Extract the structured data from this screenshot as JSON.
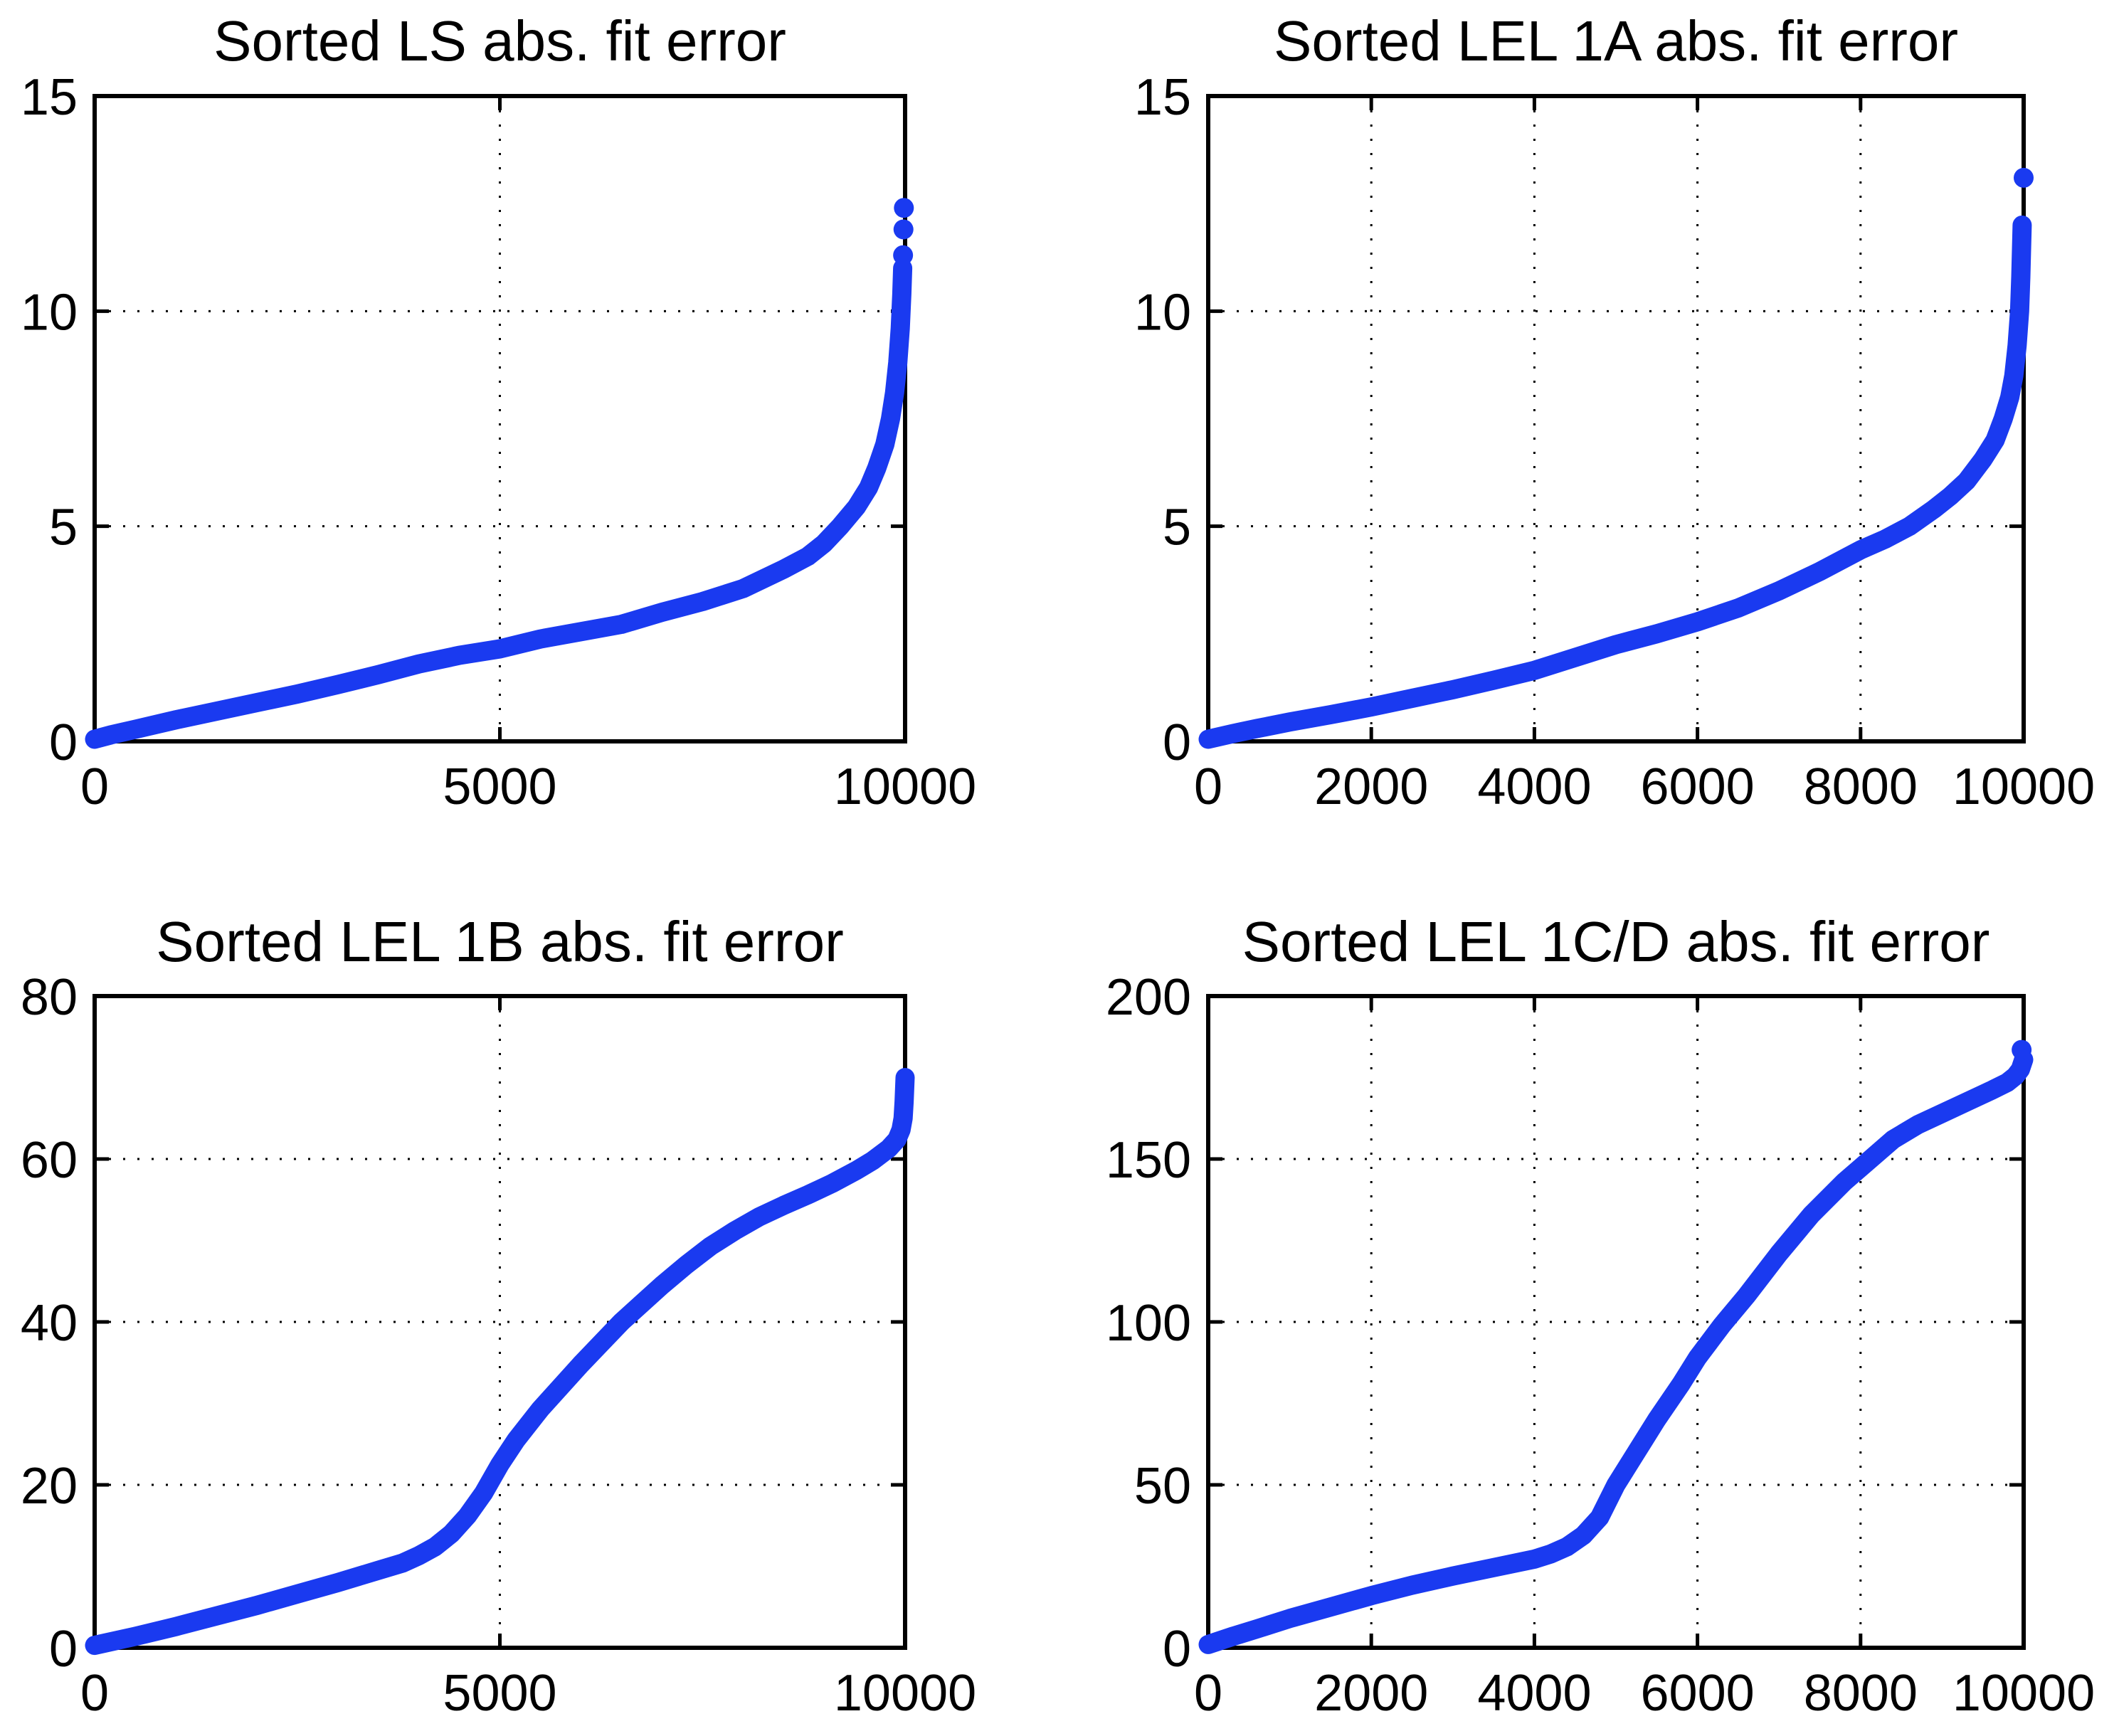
{
  "figure": {
    "background": "#ffffff",
    "axis_color": "#000000",
    "grid_color": "#000000",
    "marker_color": "#1a3af0"
  },
  "chart_data": [
    {
      "type": "scatter",
      "title": "Sorted LS abs. fit error",
      "xlabel": "",
      "ylabel": "",
      "xlim": [
        0,
        10000
      ],
      "ylim": [
        0,
        15
      ],
      "xticks": [
        0,
        5000,
        10000
      ],
      "yticks": [
        0,
        5,
        10,
        15
      ],
      "grid": true,
      "legend": "none",
      "marker_color": "#1a3af0",
      "points": [
        [
          0,
          0.05
        ],
        [
          200,
          0.15
        ],
        [
          500,
          0.28
        ],
        [
          1000,
          0.5
        ],
        [
          1500,
          0.7
        ],
        [
          2000,
          0.9
        ],
        [
          2500,
          1.1
        ],
        [
          3000,
          1.32
        ],
        [
          3500,
          1.55
        ],
        [
          4000,
          1.8
        ],
        [
          4500,
          2.0
        ],
        [
          5000,
          2.15
        ],
        [
          5500,
          2.38
        ],
        [
          6000,
          2.55
        ],
        [
          6500,
          2.72
        ],
        [
          7000,
          3.0
        ],
        [
          7500,
          3.25
        ],
        [
          8000,
          3.55
        ],
        [
          8500,
          4.0
        ],
        [
          8800,
          4.3
        ],
        [
          9000,
          4.6
        ],
        [
          9200,
          5.0
        ],
        [
          9400,
          5.45
        ],
        [
          9550,
          5.9
        ],
        [
          9650,
          6.35
        ],
        [
          9750,
          6.9
        ],
        [
          9820,
          7.5
        ],
        [
          9870,
          8.1
        ],
        [
          9910,
          8.8
        ],
        [
          9940,
          9.6
        ],
        [
          9960,
          10.4
        ],
        [
          9970,
          11.0
        ]
      ],
      "outliers": [
        [
          9975,
          11.3
        ],
        [
          9980,
          11.9
        ],
        [
          9985,
          12.4
        ]
      ]
    },
    {
      "type": "scatter",
      "title": "Sorted LEL 1A abs. fit error",
      "xlabel": "",
      "ylabel": "",
      "xlim": [
        0,
        10000
      ],
      "ylim": [
        0,
        15
      ],
      "xticks": [
        0,
        2000,
        4000,
        6000,
        8000,
        10000
      ],
      "yticks": [
        0,
        5,
        10,
        15
      ],
      "grid": true,
      "legend": "none",
      "marker_color": "#1a3af0",
      "points": [
        [
          0,
          0.05
        ],
        [
          300,
          0.18
        ],
        [
          600,
          0.3
        ],
        [
          1000,
          0.45
        ],
        [
          1500,
          0.62
        ],
        [
          2000,
          0.8
        ],
        [
          2500,
          1.0
        ],
        [
          3000,
          1.2
        ],
        [
          3500,
          1.42
        ],
        [
          4000,
          1.65
        ],
        [
          4500,
          1.95
        ],
        [
          5000,
          2.25
        ],
        [
          5500,
          2.5
        ],
        [
          6000,
          2.78
        ],
        [
          6500,
          3.1
        ],
        [
          7000,
          3.5
        ],
        [
          7500,
          3.95
        ],
        [
          8000,
          4.45
        ],
        [
          8300,
          4.7
        ],
        [
          8600,
          5.0
        ],
        [
          8900,
          5.4
        ],
        [
          9100,
          5.7
        ],
        [
          9300,
          6.05
        ],
        [
          9500,
          6.55
        ],
        [
          9650,
          7.0
        ],
        [
          9750,
          7.5
        ],
        [
          9830,
          8.0
        ],
        [
          9880,
          8.5
        ],
        [
          9920,
          9.2
        ],
        [
          9950,
          10.0
        ],
        [
          9965,
          10.8
        ],
        [
          9975,
          11.5
        ],
        [
          9982,
          12.0
        ]
      ],
      "outliers": [
        [
          10000,
          13.1
        ]
      ]
    },
    {
      "type": "scatter",
      "title": "Sorted LEL 1B abs. fit error",
      "xlabel": "",
      "ylabel": "",
      "xlim": [
        0,
        10000
      ],
      "ylim": [
        0,
        80
      ],
      "xticks": [
        0,
        5000,
        10000
      ],
      "yticks": [
        0,
        20,
        40,
        60,
        80
      ],
      "grid": true,
      "legend": "none",
      "marker_color": "#1a3af0",
      "points": [
        [
          0,
          0.3
        ],
        [
          500,
          1.4
        ],
        [
          1000,
          2.6
        ],
        [
          1500,
          3.9
        ],
        [
          2000,
          5.2
        ],
        [
          2500,
          6.6
        ],
        [
          3000,
          8.0
        ],
        [
          3500,
          9.5
        ],
        [
          3800,
          10.4
        ],
        [
          4000,
          11.3
        ],
        [
          4200,
          12.4
        ],
        [
          4400,
          14.0
        ],
        [
          4600,
          16.2
        ],
        [
          4800,
          19.0
        ],
        [
          5000,
          22.5
        ],
        [
          5200,
          25.5
        ],
        [
          5500,
          29.3
        ],
        [
          6000,
          34.8
        ],
        [
          6500,
          40.0
        ],
        [
          7000,
          44.5
        ],
        [
          7300,
          47.0
        ],
        [
          7600,
          49.3
        ],
        [
          7900,
          51.2
        ],
        [
          8200,
          52.9
        ],
        [
          8500,
          54.3
        ],
        [
          8800,
          55.6
        ],
        [
          9100,
          57.0
        ],
        [
          9400,
          58.6
        ],
        [
          9600,
          59.8
        ],
        [
          9800,
          61.3
        ],
        [
          9900,
          62.4
        ],
        [
          9950,
          63.6
        ],
        [
          9975,
          65.0
        ],
        [
          9988,
          67.0
        ],
        [
          9994,
          68.5
        ],
        [
          10000,
          70.0
        ]
      ],
      "outliers": []
    },
    {
      "type": "scatter",
      "title": "Sorted LEL 1C/D abs. fit error",
      "xlabel": "",
      "ylabel": "",
      "xlim": [
        0,
        10000
      ],
      "ylim": [
        0,
        200
      ],
      "xticks": [
        0,
        2000,
        4000,
        6000,
        8000,
        10000
      ],
      "yticks": [
        0,
        50,
        100,
        150,
        200
      ],
      "grid": true,
      "legend": "none",
      "marker_color": "#1a3af0",
      "points": [
        [
          0,
          1.0
        ],
        [
          300,
          3.5
        ],
        [
          600,
          5.8
        ],
        [
          1000,
          9.0
        ],
        [
          1500,
          12.5
        ],
        [
          2000,
          16.0
        ],
        [
          2500,
          19.2
        ],
        [
          3000,
          22.0
        ],
        [
          3500,
          24.6
        ],
        [
          4000,
          27.2
        ],
        [
          4200,
          28.8
        ],
        [
          4400,
          31.0
        ],
        [
          4600,
          34.5
        ],
        [
          4800,
          40.0
        ],
        [
          5000,
          50.0
        ],
        [
          5200,
          58.0
        ],
        [
          5500,
          70.0
        ],
        [
          5800,
          81.0
        ],
        [
          6000,
          89.0
        ],
        [
          6300,
          99.0
        ],
        [
          6600,
          108.0
        ],
        [
          7000,
          121.0
        ],
        [
          7400,
          133.0
        ],
        [
          7800,
          143.0
        ],
        [
          8100,
          149.5
        ],
        [
          8400,
          156.0
        ],
        [
          8700,
          160.5
        ],
        [
          9000,
          164.0
        ],
        [
          9300,
          167.5
        ],
        [
          9600,
          171.0
        ],
        [
          9800,
          173.5
        ],
        [
          9900,
          175.5
        ],
        [
          9960,
          177.5
        ],
        [
          10000,
          180.5
        ]
      ],
      "outliers": [
        [
          9975,
          183.5
        ]
      ]
    }
  ]
}
